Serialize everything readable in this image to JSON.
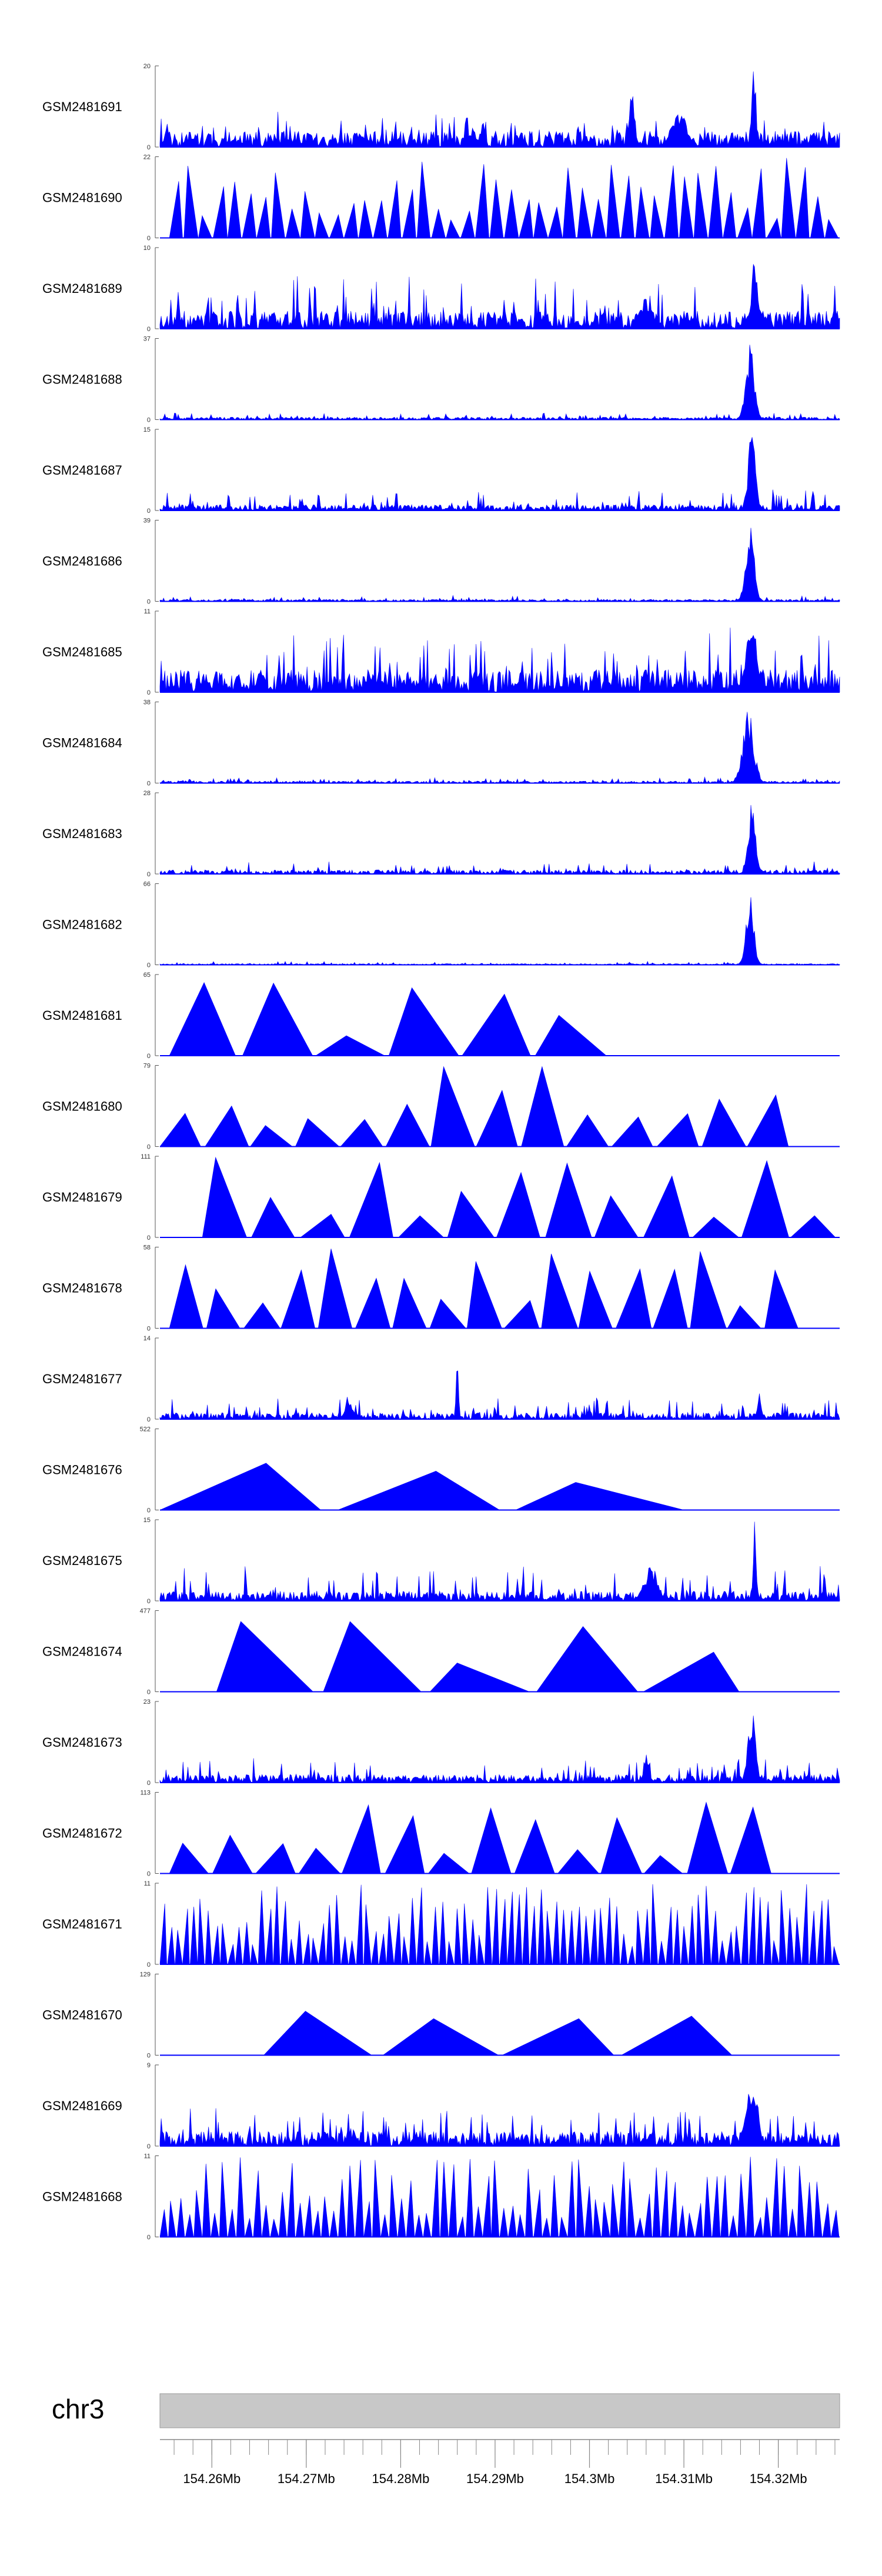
{
  "chart_data": {
    "type": "area",
    "title": "",
    "fill_color": "#0000ff",
    "baseline_color": "#0000ff",
    "ideogram_color": "#c8c8c8",
    "xlim": [
      154.2545,
      154.3265
    ],
    "xticks": [
      154.26,
      154.27,
      154.28,
      154.29,
      154.3,
      154.31,
      154.32
    ],
    "xtick_labels": [
      "154.26Mb",
      "154.27Mb",
      "154.28Mb",
      "154.29Mb",
      "154.3Mb",
      "154.31Mb",
      "154.32Mb"
    ],
    "chromosome": "chr3",
    "tracks": [
      {
        "name": "GSM2481691",
        "ymin": "0",
        "ymax": "20",
        "scale": 20,
        "style": "dense",
        "seed": 11,
        "noise": 0.2,
        "spike": 0.25,
        "peaks": [
          [
            154.3174,
            0.00025,
            1.0
          ],
          [
            154.3095,
            0.0008,
            0.45
          ],
          [
            154.3045,
            0.0003,
            0.7
          ]
        ]
      },
      {
        "name": "GSM2481690",
        "ymin": "0",
        "ymax": "22",
        "scale": 22,
        "style": "sparse",
        "extent": [
          154.2555,
          154.3265
        ],
        "count": 46,
        "seed": 7
      },
      {
        "name": "GSM2481689",
        "ymin": "0",
        "ymax": "10",
        "scale": 10,
        "style": "dense",
        "seed": 23,
        "noise": 0.22,
        "spike": 0.45,
        "peaks": [
          [
            154.3175,
            0.00035,
            1.0
          ],
          [
            154.306,
            0.0006,
            0.4
          ]
        ]
      },
      {
        "name": "GSM2481688",
        "ymin": "0",
        "ymax": "37",
        "scale": 37,
        "style": "dense",
        "seed": 31,
        "noise": 0.03,
        "spike": 0.06,
        "peaks": [
          [
            154.317,
            0.00045,
            0.95
          ]
        ]
      },
      {
        "name": "GSM2481687",
        "ymin": "0",
        "ymax": "15",
        "scale": 15,
        "style": "dense",
        "seed": 41,
        "noise": 0.07,
        "spike": 0.2,
        "peaks": [
          [
            154.3172,
            0.0004,
            1.0
          ]
        ]
      },
      {
        "name": "GSM2481686",
        "ymin": "0",
        "ymax": "39",
        "scale": 39,
        "style": "dense",
        "seed": 53,
        "noise": 0.025,
        "spike": 0.05,
        "peaks": [
          [
            154.317,
            0.00045,
            0.95
          ]
        ]
      },
      {
        "name": "GSM2481685",
        "ymin": "0",
        "ymax": "11",
        "scale": 11,
        "style": "dense",
        "seed": 61,
        "noise": 0.28,
        "spike": 0.55,
        "peaks": [
          [
            154.3172,
            0.0006,
            0.9
          ]
        ]
      },
      {
        "name": "GSM2481684",
        "ymin": "0",
        "ymax": "38",
        "scale": 38,
        "style": "dense",
        "seed": 71,
        "noise": 0.025,
        "spike": 0.05,
        "peaks": [
          [
            154.3168,
            0.0006,
            0.92
          ]
        ]
      },
      {
        "name": "GSM2481683",
        "ymin": "0",
        "ymax": "28",
        "scale": 28,
        "style": "dense",
        "seed": 83,
        "noise": 0.05,
        "spike": 0.12,
        "peaks": [
          [
            154.3172,
            0.0004,
            0.95
          ]
        ]
      },
      {
        "name": "GSM2481682",
        "ymin": "0",
        "ymax": "66",
        "scale": 66,
        "style": "dense",
        "seed": 97,
        "noise": 0.015,
        "spike": 0.03,
        "peaks": [
          [
            154.317,
            0.0004,
            0.95
          ]
        ]
      },
      {
        "name": "GSM2481681",
        "ymin": "0",
        "ymax": "65",
        "scale": 65,
        "style": "sparse",
        "extent": [
          154.2555,
          154.302
        ],
        "count": 6,
        "seed": 3
      },
      {
        "name": "GSM2481680",
        "ymin": "0",
        "ymax": "79",
        "scale": 79,
        "style": "sparse",
        "extent": [
          154.2545,
          154.3215
        ],
        "count": 14,
        "seed": 5
      },
      {
        "name": "GSM2481679",
        "ymin": "0",
        "ymax": "111",
        "scale": 111,
        "style": "sparse",
        "extent": [
          154.259,
          154.3265
        ],
        "count": 13,
        "seed": 9
      },
      {
        "name": "GSM2481678",
        "ymin": "0",
        "ymax": "58",
        "scale": 58,
        "style": "sparse",
        "extent": [
          154.2555,
          154.3225
        ],
        "count": 17,
        "seed": 13
      },
      {
        "name": "GSM2481677",
        "ymin": "0",
        "ymax": "14",
        "scale": 14,
        "style": "dense",
        "seed": 101,
        "noise": 0.08,
        "spike": 0.2,
        "peaks": [
          [
            154.286,
            0.00012,
            1.0
          ],
          [
            154.318,
            0.0002,
            0.4
          ],
          [
            154.2745,
            0.0004,
            0.3
          ]
        ]
      },
      {
        "name": "GSM2481676",
        "ymin": "0",
        "ymax": "522",
        "scale": 522,
        "style": "sparse",
        "extent": [
          154.2545,
          154.311
        ],
        "count": 3,
        "seed": 17
      },
      {
        "name": "GSM2481675",
        "ymin": "0",
        "ymax": "15",
        "scale": 15,
        "style": "dense",
        "seed": 113,
        "noise": 0.12,
        "spike": 0.35,
        "peaks": [
          [
            154.3175,
            0.00015,
            1.0
          ],
          [
            154.3065,
            0.0007,
            0.45
          ]
        ]
      },
      {
        "name": "GSM2481674",
        "ymin": "0",
        "ymax": "477",
        "scale": 477,
        "style": "sparse",
        "extent": [
          154.2605,
          154.317
        ],
        "count": 5,
        "seed": 19
      },
      {
        "name": "GSM2481673",
        "ymin": "0",
        "ymax": "23",
        "scale": 23,
        "style": "dense",
        "seed": 127,
        "noise": 0.1,
        "spike": 0.25,
        "peaks": [
          [
            154.3172,
            0.0004,
            0.95
          ],
          [
            154.306,
            0.0003,
            0.35
          ]
        ]
      },
      {
        "name": "GSM2481672",
        "ymin": "0",
        "ymax": "113",
        "scale": 113,
        "style": "sparse",
        "extent": [
          154.2555,
          154.3195
        ],
        "count": 14,
        "seed": 21
      },
      {
        "name": "GSM2481671",
        "ymin": "0",
        "ymax": "11",
        "scale": 11,
        "style": "sparse",
        "extent": [
          154.2545,
          154.3265
        ],
        "count": 90,
        "seed": 29
      },
      {
        "name": "GSM2481670",
        "ymin": "0",
        "ymax": "129",
        "scale": 129,
        "style": "sparse",
        "extent": [
          154.2655,
          154.316
        ],
        "count": 4,
        "seed": 33
      },
      {
        "name": "GSM2481669",
        "ymin": "0",
        "ymax": "9",
        "scale": 9,
        "style": "dense",
        "seed": 139,
        "noise": 0.18,
        "spike": 0.35,
        "peaks": [
          [
            154.3172,
            0.0006,
            0.9
          ]
        ]
      },
      {
        "name": "GSM2481668",
        "ymin": "0",
        "ymax": "11",
        "scale": 11,
        "style": "sparse",
        "extent": [
          154.2545,
          154.3265
        ],
        "count": 80,
        "seed": 37
      }
    ]
  }
}
